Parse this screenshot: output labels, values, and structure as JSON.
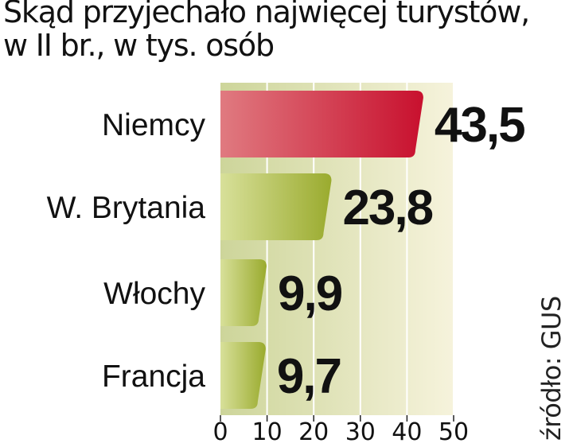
{
  "title_lines": [
    "Skąd przyjechało najwięcej turystów,",
    "w II br., w tys. osób"
  ],
  "source": "źródło: GUS",
  "colors": {
    "highlight_light": "#e07a80",
    "highlight_dark": "#c8102e",
    "bar_light": "#d8e09a",
    "bar_dark": "#9aab2e",
    "background_light": "#f6f3dc",
    "background_dark": "#cdd59a"
  },
  "chart_data": {
    "type": "bar",
    "orientation": "horizontal",
    "categories": [
      "Niemcy",
      "W. Brytania",
      "Włochy",
      "Francja"
    ],
    "values": [
      43.5,
      23.8,
      9.9,
      9.7
    ],
    "value_labels": [
      "43,5",
      "23,8",
      "9,9",
      "9,7"
    ],
    "highlight_index": 0,
    "xlim": [
      0,
      50
    ],
    "x_ticks": [
      0,
      10,
      20,
      30,
      40,
      50
    ],
    "grid": true,
    "title": "Skąd przyjechało najwięcej turystów, w II br., w tys. osób",
    "xlabel": "",
    "ylabel": ""
  }
}
